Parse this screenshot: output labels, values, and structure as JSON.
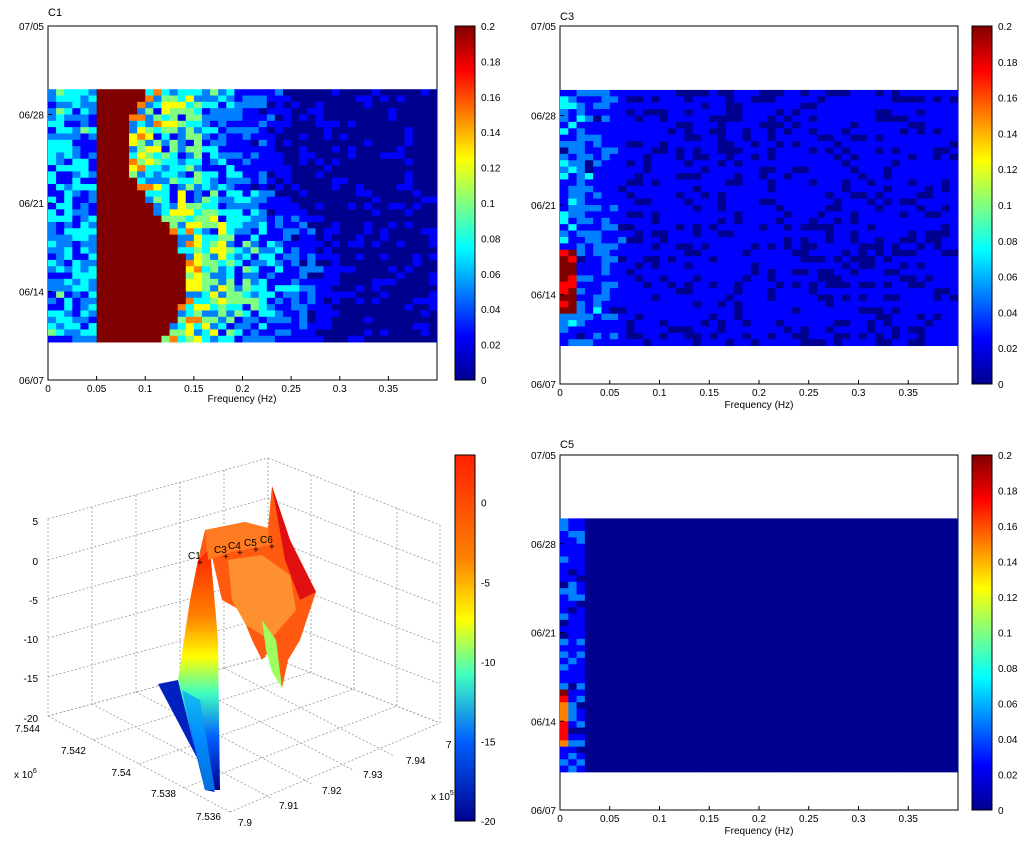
{
  "colormap": [
    "#00008f",
    "#0000ff",
    "#0080ff",
    "#00ffff",
    "#80ff80",
    "#ffff00",
    "#ff8000",
    "#ff0000",
    "#800000"
  ],
  "chart_data": [
    {
      "type": "heatmap",
      "title": "C1",
      "xlabel": "Frequency (Hz)",
      "ylabel": "",
      "xlim": [
        0,
        0.4
      ],
      "xticks": [
        0,
        0.05,
        0.1,
        0.15,
        0.2,
        0.25,
        0.3,
        0.35
      ],
      "xtick_labels": [
        "0",
        "0.05",
        "0.1",
        "0.15",
        "0.2",
        "0.25",
        "0.3",
        "0.35"
      ],
      "ylim": [
        "06/07",
        "07/05"
      ],
      "yticks": [
        "07/05",
        "06/28",
        "06/21",
        "06/14",
        "06/07"
      ],
      "data_date_range": [
        "06/10",
        "06/30"
      ],
      "colorbar": {
        "range": [
          0,
          0.2
        ],
        "ticks": [
          "0.2",
          "0.18",
          "0.16",
          "0.14",
          "0.12",
          "0.1",
          "0.08",
          "0.06",
          "0.04",
          "0.02",
          "0"
        ]
      },
      "intensity": "high"
    },
    {
      "type": "heatmap",
      "title": "C3",
      "xlabel": "Frequency (Hz)",
      "ylabel": "",
      "xlim": [
        0,
        0.4
      ],
      "xticks": [
        0,
        0.05,
        0.1,
        0.15,
        0.2,
        0.25,
        0.3,
        0.35
      ],
      "xtick_labels": [
        "0",
        "0.05",
        "0.1",
        "0.15",
        "0.2",
        "0.25",
        "0.3",
        "0.35"
      ],
      "ylim": [
        "06/07",
        "07/05"
      ],
      "yticks": [
        "07/05",
        "06/28",
        "06/21",
        "06/14",
        "06/07"
      ],
      "data_date_range": [
        "06/10",
        "06/30"
      ],
      "colorbar": {
        "range": [
          0,
          0.2
        ],
        "ticks": [
          "0.2",
          "0.18",
          "0.16",
          "0.14",
          "0.12",
          "0.1",
          "0.08",
          "0.06",
          "0.04",
          "0.02",
          "0"
        ]
      },
      "intensity": "medium"
    },
    {
      "type": "surface3d",
      "title": "",
      "z_ticks": [
        "5",
        "0",
        "-5",
        "-10",
        "-15",
        "-20"
      ],
      "y_ticks": [
        "7.544",
        "7.542",
        "7.54",
        "7.538",
        "7.536"
      ],
      "y_exponent": "x 10",
      "y_exponent_power": "6",
      "x_ticks": [
        "7.9",
        "7.91",
        "7.92",
        "7.93",
        "7.94",
        "7"
      ],
      "x_exponent": "x 10",
      "x_exponent_power": "5",
      "colorbar": {
        "range": [
          -20,
          3
        ],
        "ticks": [
          "0",
          "-5",
          "-10",
          "-15",
          "-20"
        ]
      },
      "station_labels": [
        "C1",
        "C3",
        "C4",
        "C5",
        "C6"
      ]
    },
    {
      "type": "heatmap",
      "title": "C5",
      "xlabel": "Frequency (Hz)",
      "ylabel": "",
      "xlim": [
        0,
        0.4
      ],
      "xticks": [
        0,
        0.05,
        0.1,
        0.15,
        0.2,
        0.25,
        0.3,
        0.35
      ],
      "xtick_labels": [
        "0",
        "0.05",
        "0.1",
        "0.15",
        "0.2",
        "0.25",
        "0.3",
        "0.35"
      ],
      "ylim": [
        "06/07",
        "07/05"
      ],
      "yticks": [
        "07/05",
        "06/28",
        "06/21",
        "06/14",
        "06/07"
      ],
      "data_date_range": [
        "06/10",
        "06/30"
      ],
      "colorbar": {
        "range": [
          0,
          0.2
        ],
        "ticks": [
          "0.2",
          "0.18",
          "0.16",
          "0.14",
          "0.12",
          "0.1",
          "0.08",
          "0.06",
          "0.04",
          "0.02",
          "0"
        ]
      },
      "intensity": "low"
    }
  ]
}
